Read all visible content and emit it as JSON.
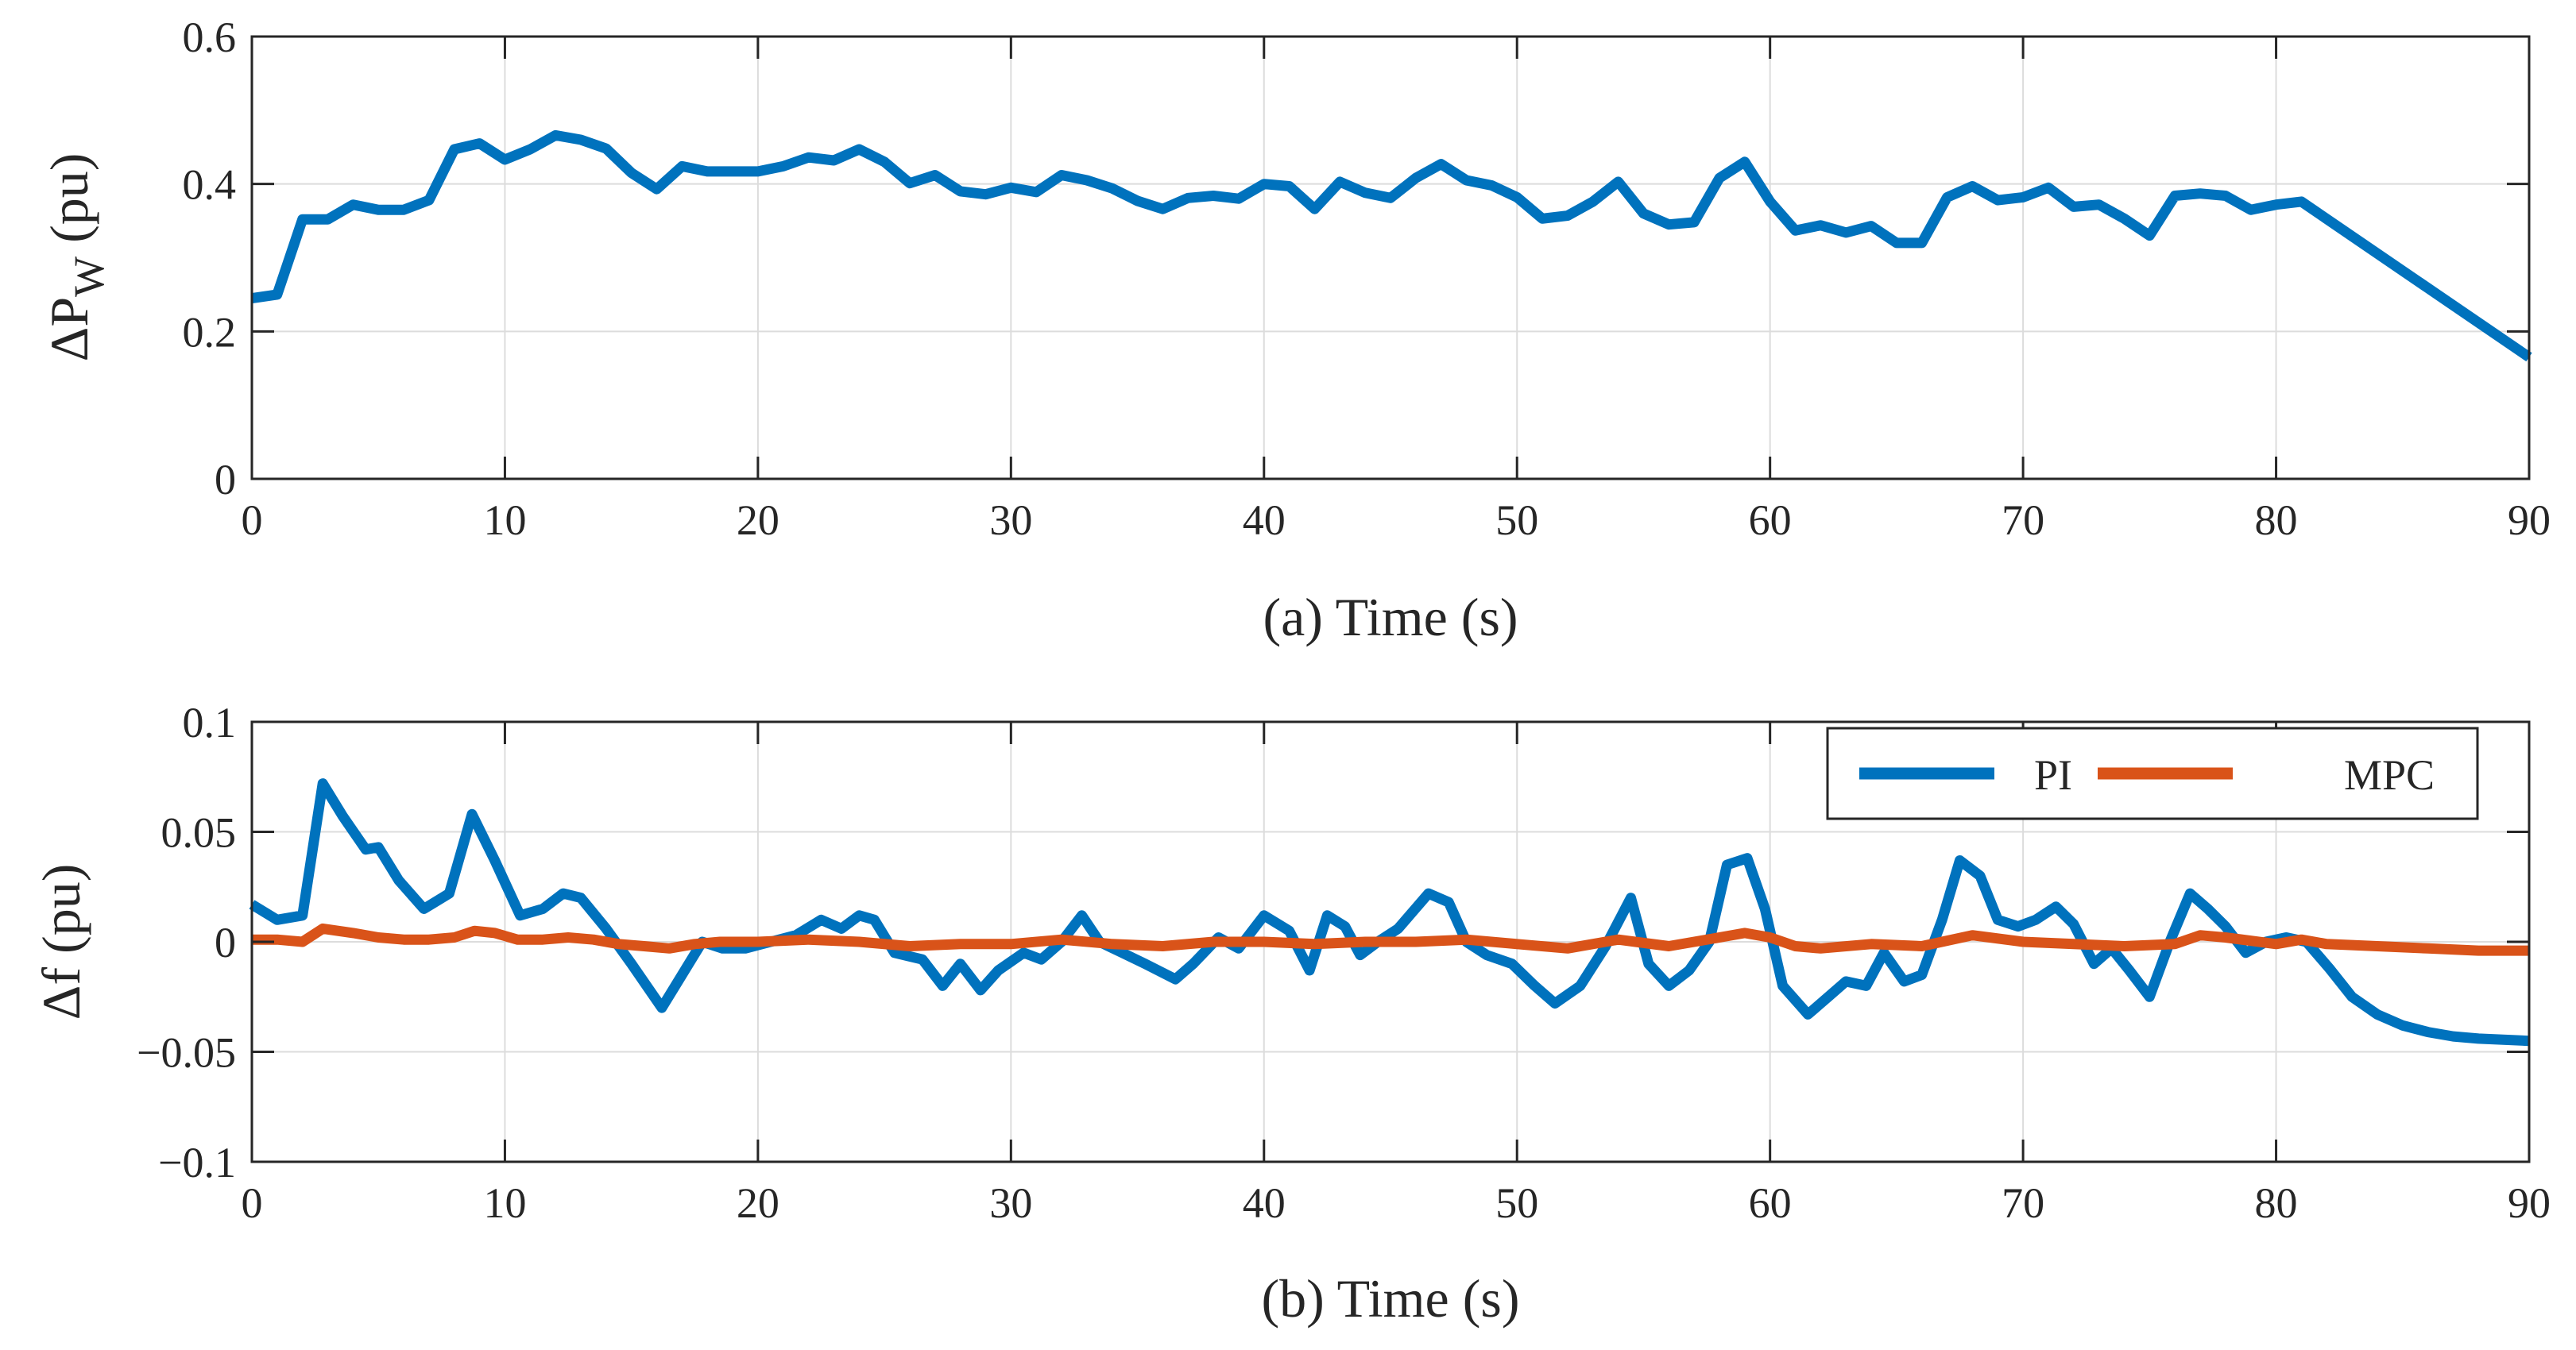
{
  "chart_data": [
    {
      "type": "line",
      "xlabel": "(a) Time (s)",
      "ylabel_main": "ΔP",
      "ylabel_sub": "W",
      "ylabel_suffix": "(pu)",
      "xlim": [
        0,
        90
      ],
      "ylim": [
        0,
        0.6
      ],
      "xticks": [
        0,
        10,
        20,
        30,
        40,
        50,
        60,
        70,
        80,
        90
      ],
      "xtick_labels": [
        "0",
        "10",
        "20",
        "30",
        "40",
        "50",
        "60",
        "70",
        "80",
        "90"
      ],
      "yticks": [
        0,
        0.2,
        0.4,
        0.6
      ],
      "ytick_labels": [
        "0",
        "0.2",
        "0.4",
        "0.6"
      ],
      "grid": true,
      "series": [
        {
          "name": "ΔPw",
          "color": "#0072BD",
          "x": [
            0,
            1,
            2,
            3,
            4,
            5,
            6,
            7,
            8,
            9,
            10,
            11,
            12,
            13,
            14,
            15,
            16,
            17,
            18,
            19,
            20,
            21,
            22,
            23,
            24,
            25,
            26,
            27,
            28,
            29,
            30,
            31,
            32,
            33,
            34,
            35,
            36,
            37,
            38,
            39,
            40,
            41,
            42,
            43,
            44,
            45,
            46,
            47,
            48,
            49,
            50,
            51,
            52,
            53,
            54,
            55,
            56,
            57,
            58,
            59,
            60,
            61,
            62,
            63,
            64,
            65,
            66,
            67,
            68,
            69,
            70,
            71,
            72,
            73,
            74,
            75,
            76,
            77,
            78,
            79,
            80,
            81,
            90
          ],
          "y": [
            0.245,
            0.25,
            0.352,
            0.352,
            0.372,
            0.365,
            0.365,
            0.378,
            0.447,
            0.455,
            0.433,
            0.447,
            0.466,
            0.46,
            0.448,
            0.415,
            0.393,
            0.424,
            0.417,
            0.417,
            0.417,
            0.424,
            0.436,
            0.432,
            0.447,
            0.43,
            0.401,
            0.412,
            0.39,
            0.386,
            0.395,
            0.389,
            0.412,
            0.405,
            0.394,
            0.377,
            0.366,
            0.381,
            0.384,
            0.38,
            0.4,
            0.397,
            0.366,
            0.403,
            0.388,
            0.381,
            0.408,
            0.427,
            0.405,
            0.398,
            0.382,
            0.353,
            0.357,
            0.376,
            0.403,
            0.36,
            0.345,
            0.348,
            0.408,
            0.43,
            0.376,
            0.337,
            0.344,
            0.334,
            0.343,
            0.32,
            0.32,
            0.382,
            0.397,
            0.378,
            0.382,
            0.395,
            0.369,
            0.372,
            0.353,
            0.33,
            0.384,
            0.387,
            0.384,
            0.365,
            0.372,
            0.376,
            0.165
          ]
        }
      ]
    },
    {
      "type": "line",
      "xlabel": "(b) Time (s)",
      "ylabel": "Δf (pu)",
      "xlim": [
        0,
        90
      ],
      "ylim": [
        -0.1,
        0.1
      ],
      "xticks": [
        0,
        10,
        20,
        30,
        40,
        50,
        60,
        70,
        80,
        90
      ],
      "xtick_labels": [
        "0",
        "10",
        "20",
        "30",
        "40",
        "50",
        "60",
        "70",
        "80",
        "90"
      ],
      "yticks": [
        -0.1,
        -0.05,
        0,
        0.05,
        0.1
      ],
      "ytick_labels": [
        "−0.1",
        "−0.05",
        "0",
        "0.05",
        "0.1"
      ],
      "grid": true,
      "legend_position": "top-right",
      "series": [
        {
          "name": "PI",
          "color": "#0072BD",
          "x": [
            0,
            1,
            2,
            2.8,
            3.6,
            4.5,
            5,
            5.8,
            6.8,
            7.8,
            8.7,
            9.6,
            10.6,
            11.5,
            12.3,
            13,
            14,
            15,
            16.2,
            17,
            17.8,
            18.6,
            19.5,
            20.5,
            21.5,
            22.5,
            23.3,
            24,
            24.6,
            25.4,
            26.5,
            27.3,
            28,
            28.8,
            29.5,
            30.5,
            31.2,
            32,
            32.8,
            33.5,
            34.4,
            35.3,
            36.5,
            37.2,
            38.2,
            39,
            40,
            41,
            41.8,
            42.5,
            43.2,
            43.8,
            44.5,
            45.3,
            46.5,
            47.3,
            48,
            48.8,
            49.8,
            50.7,
            51.5,
            52.5,
            53.5,
            54.5,
            55.2,
            56,
            56.8,
            57.6,
            58.3,
            59.1,
            59.8,
            60.5,
            61.5,
            62.3,
            63,
            63.8,
            64.5,
            65.3,
            66,
            66.8,
            67.5,
            68.3,
            69,
            69.8,
            70.5,
            71.3,
            72,
            72.8,
            73.5,
            74.2,
            75,
            75.8,
            76.6,
            77.3,
            78,
            78.8,
            79.6,
            80.4,
            81.2,
            82.1,
            83,
            84,
            85,
            86,
            87,
            88,
            90
          ],
          "y": [
            0.017,
            0.01,
            0.012,
            0.072,
            0.057,
            0.042,
            0.043,
            0.028,
            0.015,
            0.022,
            0.058,
            0.037,
            0.012,
            0.015,
            0.022,
            0.02,
            0.006,
            -0.01,
            -0.03,
            -0.015,
            0.0,
            -0.003,
            -0.003,
            0.0,
            0.003,
            0.01,
            0.006,
            0.012,
            0.01,
            -0.005,
            -0.008,
            -0.02,
            -0.01,
            -0.022,
            -0.013,
            -0.005,
            -0.008,
            0.0,
            0.012,
            0.0,
            -0.005,
            -0.01,
            -0.017,
            -0.01,
            0.002,
            -0.003,
            0.012,
            0.005,
            -0.013,
            0.012,
            0.007,
            -0.006,
            0.0,
            0.006,
            0.022,
            0.018,
            0.0,
            -0.006,
            -0.01,
            -0.02,
            -0.028,
            -0.02,
            -0.002,
            0.02,
            -0.01,
            -0.02,
            -0.013,
            0.0,
            0.035,
            0.038,
            0.015,
            -0.02,
            -0.033,
            -0.025,
            -0.018,
            -0.02,
            -0.005,
            -0.018,
            -0.015,
            0.01,
            0.037,
            0.03,
            0.01,
            0.007,
            0.01,
            0.016,
            0.008,
            -0.01,
            -0.003,
            -0.013,
            -0.025,
            0.0,
            0.022,
            0.015,
            0.007,
            -0.005,
            0.0,
            0.002,
            0.0,
            -0.012,
            -0.025,
            -0.033,
            -0.038,
            -0.041,
            -0.043,
            -0.044,
            -0.045
          ]
        },
        {
          "name": "MPC",
          "color": "#D95319",
          "x": [
            0,
            1,
            2,
            2.8,
            4,
            5,
            6,
            7,
            8,
            8.8,
            9.6,
            10.5,
            11.5,
            12.5,
            13.5,
            14.5,
            15.5,
            16.5,
            17.5,
            18.5,
            20,
            22,
            24,
            26,
            28,
            30,
            32,
            34,
            36,
            38,
            40,
            42,
            44,
            46,
            48,
            50,
            52,
            54,
            56,
            58,
            59,
            60,
            61,
            62,
            64,
            66,
            68,
            70,
            72,
            74,
            76,
            77,
            78,
            80,
            81,
            82,
            84,
            86,
            88,
            90
          ],
          "y": [
            0.001,
            0.001,
            0.0,
            0.006,
            0.004,
            0.002,
            0.001,
            0.001,
            0.002,
            0.005,
            0.004,
            0.001,
            0.001,
            0.002,
            0.001,
            -0.001,
            -0.002,
            -0.003,
            -0.001,
            0.0,
            0.0,
            0.001,
            0.0,
            -0.002,
            -0.001,
            -0.001,
            0.001,
            -0.001,
            -0.002,
            0.0,
            0.0,
            -0.001,
            0.0,
            0.0,
            0.001,
            -0.001,
            -0.003,
            0.001,
            -0.002,
            0.002,
            0.004,
            0.002,
            -0.002,
            -0.003,
            -0.001,
            -0.002,
            0.003,
            0.0,
            -0.001,
            -0.002,
            -0.001,
            0.003,
            0.002,
            -0.001,
            0.001,
            -0.001,
            -0.002,
            -0.003,
            -0.004,
            -0.004
          ]
        }
      ]
    }
  ]
}
